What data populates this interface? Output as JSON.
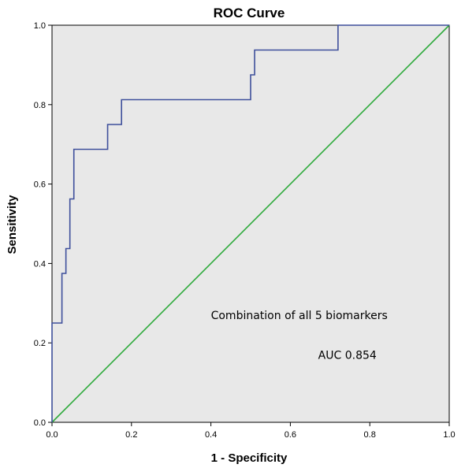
{
  "chart_data": {
    "type": "line",
    "title": "ROC Curve",
    "xlabel": "1 - Specificity",
    "ylabel": "Sensitivity",
    "xlim": [
      0,
      1
    ],
    "ylim": [
      0,
      1
    ],
    "x_ticks": [
      "0.0",
      "0.2",
      "0.4",
      "0.6",
      "0.8",
      "1.0"
    ],
    "y_ticks": [
      "0.0",
      "0.2",
      "0.4",
      "0.6",
      "0.8",
      "1.0"
    ],
    "grid": false,
    "background_color": "#e8e8e8",
    "series": [
      {
        "color": "#3e4f9b",
        "points": [
          [
            0.0,
            0.0
          ],
          [
            0.0,
            0.25
          ],
          [
            0.025,
            0.25
          ],
          [
            0.025,
            0.375
          ],
          [
            0.035,
            0.375
          ],
          [
            0.035,
            0.4375
          ],
          [
            0.045,
            0.4375
          ],
          [
            0.045,
            0.5625
          ],
          [
            0.055,
            0.5625
          ],
          [
            0.055,
            0.6875
          ],
          [
            0.14,
            0.6875
          ],
          [
            0.14,
            0.75
          ],
          [
            0.175,
            0.75
          ],
          [
            0.175,
            0.8125
          ],
          [
            0.5,
            0.8125
          ],
          [
            0.5,
            0.875
          ],
          [
            0.51,
            0.875
          ],
          [
            0.51,
            0.9375
          ],
          [
            0.72,
            0.9375
          ],
          [
            0.72,
            1.0
          ],
          [
            1.0,
            1.0
          ]
        ]
      },
      {
        "color": "#2eaa3c",
        "points": [
          [
            0,
            0
          ],
          [
            1,
            1
          ]
        ]
      }
    ],
    "annotations": [
      {
        "text": "Combination of all 5 biomarkers",
        "x": 0.4,
        "y": 0.26
      },
      {
        "text": "AUC 0.854",
        "x": 0.67,
        "y": 0.16
      }
    ]
  }
}
